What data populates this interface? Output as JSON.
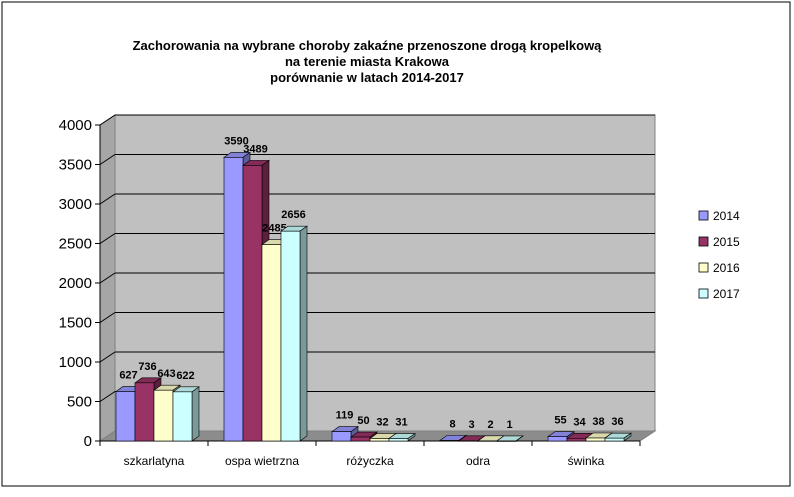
{
  "chart_data": {
    "type": "bar",
    "title_lines": [
      "Zachorowania na wybrane choroby zakaźne przenoszone drogą kropelkową",
      "na terenie miasta Krakowa",
      "porównanie w latach 2014-2017"
    ],
    "categories": [
      "szkarlatyna",
      "ospa wietrzna",
      "różyczka",
      "odra",
      "świnka"
    ],
    "series": [
      {
        "name": "2014",
        "values": [
          627,
          3590,
          119,
          8,
          55
        ],
        "color": "#9999ff"
      },
      {
        "name": "2015",
        "values": [
          736,
          3489,
          50,
          3,
          34
        ],
        "color": "#993366"
      },
      {
        "name": "2016",
        "values": [
          643,
          2485,
          32,
          2,
          38
        ],
        "color": "#ffffcc"
      },
      {
        "name": "2017",
        "values": [
          622,
          2656,
          31,
          1,
          36
        ],
        "color": "#ccffff"
      }
    ],
    "ylim": [
      0,
      4000
    ],
    "yticks": [
      0,
      500,
      1000,
      1500,
      2000,
      2500,
      3000,
      3500,
      4000
    ],
    "grid": true,
    "legend_position": "right",
    "plot_background": "#c0c0c0",
    "three_d": true
  }
}
